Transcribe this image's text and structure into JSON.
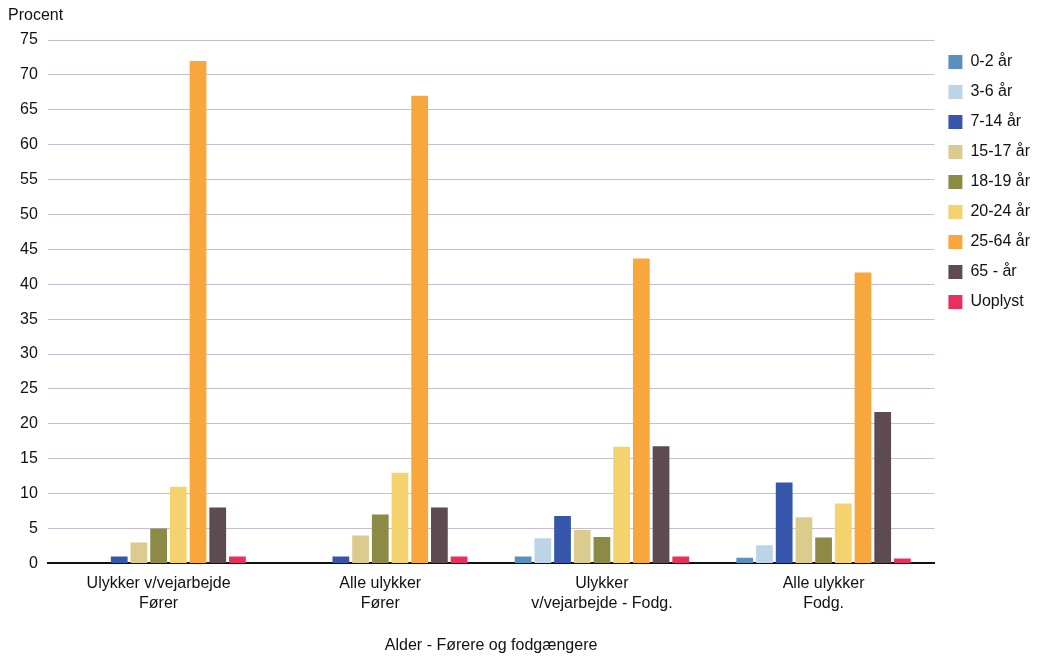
{
  "chart_data": {
    "type": "bar",
    "ylabel": "Procent",
    "xlabel": "Alder - Førere og fodgængere",
    "categories": [
      "Ulykker v/vejarbejde\nFører",
      "Alle ulykker\nFører",
      "Ulykker\nv/vejarbejde - Fodg.",
      "Alle ulykker\nFodg."
    ],
    "series": [
      {
        "name": "0-2 år",
        "color": "#5b8fbd",
        "values": [
          0,
          0,
          1,
          0.8
        ]
      },
      {
        "name": "3-6 år",
        "color": "#bcd4e6",
        "values": [
          0,
          0,
          3.6,
          2.6
        ]
      },
      {
        "name": "7-14 år",
        "color": "#3556aa",
        "values": [
          1,
          1,
          6.8,
          11.6
        ]
      },
      {
        "name": "15-17 år",
        "color": "#dccb8e",
        "values": [
          3,
          4,
          4.8,
          6.6
        ]
      },
      {
        "name": "18-19 år",
        "color": "#8c8a45",
        "values": [
          5,
          7,
          3.8,
          3.7
        ]
      },
      {
        "name": "20-24 år",
        "color": "#f4d26e",
        "values": [
          11,
          13,
          16.7,
          8.6
        ]
      },
      {
        "name": "25-64 år",
        "color": "#f8a73c",
        "values": [
          72,
          67,
          43.7,
          41.7
        ]
      },
      {
        "name": "65 - år",
        "color": "#5e4b52",
        "values": [
          8,
          8,
          16.8,
          21.7
        ]
      },
      {
        "name": "Uoplyst",
        "color": "#e8305e",
        "values": [
          1,
          1,
          1,
          0.7
        ]
      }
    ],
    "ylim": [
      0,
      75
    ],
    "yticks": [
      0,
      5,
      10,
      15,
      20,
      25,
      30,
      35,
      40,
      45,
      50,
      55,
      60,
      65,
      70,
      75
    ],
    "grid": "y",
    "legend": "right"
  }
}
